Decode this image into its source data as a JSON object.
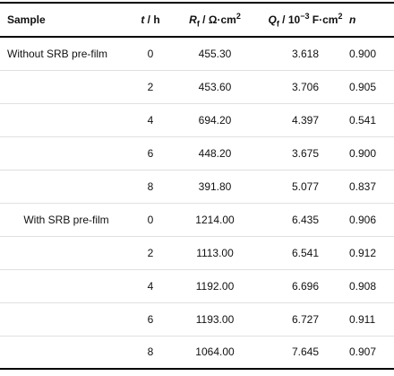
{
  "header": {
    "sample": "Sample",
    "t_var": "t",
    "t_unit": " / h",
    "rf_var": "R",
    "rf_sub": "f",
    "rf_unit": " / Ω·cm",
    "rf_sup": "2",
    "qf_var": "Q",
    "qf_sub": "f",
    "qf_unit1": " / 10",
    "qf_sup1": "−3",
    "qf_unit2": " F·cm",
    "qf_sup2": "2",
    "n_var": "n"
  },
  "rows": [
    {
      "sample": "Without SRB pre-film",
      "t": "0",
      "rf": "455.30",
      "qf": "3.618",
      "n": "0.900"
    },
    {
      "sample": "",
      "t": "2",
      "rf": "453.60",
      "qf": "3.706",
      "n": "0.905"
    },
    {
      "sample": "",
      "t": "4",
      "rf": "694.20",
      "qf": "4.397",
      "n": "0.541"
    },
    {
      "sample": "",
      "t": "6",
      "rf": "448.20",
      "qf": "3.675",
      "n": "0.900"
    },
    {
      "sample": "",
      "t": "8",
      "rf": "391.80",
      "qf": "5.077",
      "n": "0.837"
    },
    {
      "sample": "With SRB pre-film",
      "t": "0",
      "rf": "1214.00",
      "qf": "6.435",
      "n": "0.906"
    },
    {
      "sample": "",
      "t": "2",
      "rf": "1113.00",
      "qf": "6.541",
      "n": "0.912"
    },
    {
      "sample": "",
      "t": "4",
      "rf": "1192.00",
      "qf": "6.696",
      "n": "0.908"
    },
    {
      "sample": "",
      "t": "6",
      "rf": "1193.00",
      "qf": "6.727",
      "n": "0.911"
    },
    {
      "sample": "",
      "t": "8",
      "rf": "1064.00",
      "qf": "7.645",
      "n": "0.907"
    }
  ]
}
